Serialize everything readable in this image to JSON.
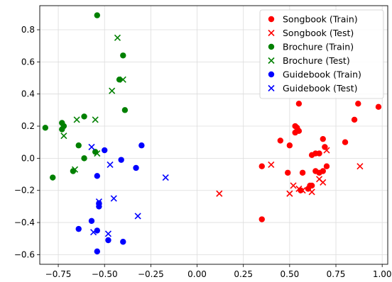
{
  "chart_data": {
    "type": "scatter",
    "title": "",
    "xlabel": "",
    "ylabel": "",
    "xlim": [
      -0.85,
      1.03
    ],
    "ylim": [
      -0.66,
      0.95
    ],
    "xticks": [
      -0.75,
      -0.5,
      -0.25,
      0.0,
      0.25,
      0.5,
      0.75,
      1.0
    ],
    "xtick_labels": [
      "−0.75",
      "−0.50",
      "−0.25",
      "0.00",
      "0.25",
      "0.50",
      "0.75",
      "1.00"
    ],
    "yticks": [
      -0.6,
      -0.4,
      -0.2,
      0.0,
      0.2,
      0.4,
      0.6,
      0.8
    ],
    "ytick_labels": [
      "−0.6",
      "−0.4",
      "−0.2",
      "0.0",
      "0.2",
      "0.4",
      "0.6",
      "0.8"
    ],
    "grid": true,
    "legend_position": "top-right",
    "series": [
      {
        "name": "Songbook (Train)",
        "color": "#ff0000",
        "marker": "circle",
        "points": [
          [
            0.35,
            -0.05
          ],
          [
            0.35,
            -0.38
          ],
          [
            0.45,
            0.11
          ],
          [
            0.49,
            -0.09
          ],
          [
            0.5,
            0.08
          ],
          [
            0.53,
            0.2
          ],
          [
            0.53,
            0.16
          ],
          [
            0.54,
            0.19
          ],
          [
            0.55,
            0.17
          ],
          [
            0.55,
            0.34
          ],
          [
            0.56,
            -0.2
          ],
          [
            0.57,
            -0.09
          ],
          [
            0.6,
            -0.19
          ],
          [
            0.61,
            -0.17
          ],
          [
            0.62,
            -0.17
          ],
          [
            0.62,
            0.02
          ],
          [
            0.64,
            -0.08
          ],
          [
            0.64,
            0.03
          ],
          [
            0.66,
            0.03
          ],
          [
            0.66,
            -0.09
          ],
          [
            0.68,
            0.12
          ],
          [
            0.68,
            -0.08
          ],
          [
            0.69,
            0.07
          ],
          [
            0.7,
            -0.05
          ],
          [
            0.8,
            0.1
          ],
          [
            0.85,
            0.24
          ],
          [
            0.87,
            0.34
          ],
          [
            0.98,
            0.32
          ]
        ]
      },
      {
        "name": "Songbook (Test)",
        "color": "#ff0000",
        "marker": "cross",
        "points": [
          [
            0.12,
            -0.22
          ],
          [
            0.4,
            -0.04
          ],
          [
            0.5,
            -0.22
          ],
          [
            0.52,
            -0.17
          ],
          [
            0.55,
            -0.19
          ],
          [
            0.57,
            -0.2
          ],
          [
            0.62,
            -0.21
          ],
          [
            0.66,
            -0.13
          ],
          [
            0.68,
            -0.15
          ],
          [
            0.7,
            0.05
          ],
          [
            0.88,
            -0.05
          ]
        ]
      },
      {
        "name": "Brochure (Train)",
        "color": "#008000",
        "marker": "circle",
        "points": [
          [
            -0.82,
            0.19
          ],
          [
            -0.78,
            -0.12
          ],
          [
            -0.73,
            0.22
          ],
          [
            -0.73,
            0.18
          ],
          [
            -0.72,
            0.2
          ],
          [
            -0.67,
            -0.08
          ],
          [
            -0.64,
            0.08
          ],
          [
            -0.61,
            0.26
          ],
          [
            -0.61,
            0.0
          ],
          [
            -0.55,
            0.04
          ],
          [
            -0.54,
            0.89
          ],
          [
            -0.42,
            0.49
          ],
          [
            -0.4,
            0.64
          ],
          [
            -0.39,
            0.3
          ]
        ]
      },
      {
        "name": "Brochure (Test)",
        "color": "#008000",
        "marker": "cross",
        "points": [
          [
            -0.72,
            0.14
          ],
          [
            -0.66,
            -0.07
          ],
          [
            -0.65,
            0.24
          ],
          [
            -0.55,
            0.24
          ],
          [
            -0.54,
            0.03
          ],
          [
            -0.46,
            0.42
          ],
          [
            -0.43,
            0.75
          ],
          [
            -0.4,
            0.49
          ]
        ]
      },
      {
        "name": "Guidebook (Train)",
        "color": "#0000ff",
        "marker": "circle",
        "points": [
          [
            -0.64,
            -0.44
          ],
          [
            -0.57,
            -0.39
          ],
          [
            -0.54,
            -0.58
          ],
          [
            -0.54,
            -0.45
          ],
          [
            -0.54,
            -0.11
          ],
          [
            -0.53,
            -0.3
          ],
          [
            -0.53,
            -0.28
          ],
          [
            -0.5,
            0.05
          ],
          [
            -0.48,
            -0.51
          ],
          [
            -0.41,
            -0.01
          ],
          [
            -0.4,
            -0.52
          ],
          [
            -0.33,
            -0.06
          ],
          [
            -0.3,
            0.08
          ]
        ]
      },
      {
        "name": "Guidebook (Test)",
        "color": "#0000ff",
        "marker": "cross",
        "points": [
          [
            -0.57,
            0.07
          ],
          [
            -0.56,
            -0.46
          ],
          [
            -0.53,
            -0.27
          ],
          [
            -0.48,
            -0.47
          ],
          [
            -0.47,
            -0.04
          ],
          [
            -0.45,
            -0.25
          ],
          [
            -0.32,
            -0.36
          ],
          [
            -0.17,
            -0.12
          ]
        ]
      }
    ]
  }
}
